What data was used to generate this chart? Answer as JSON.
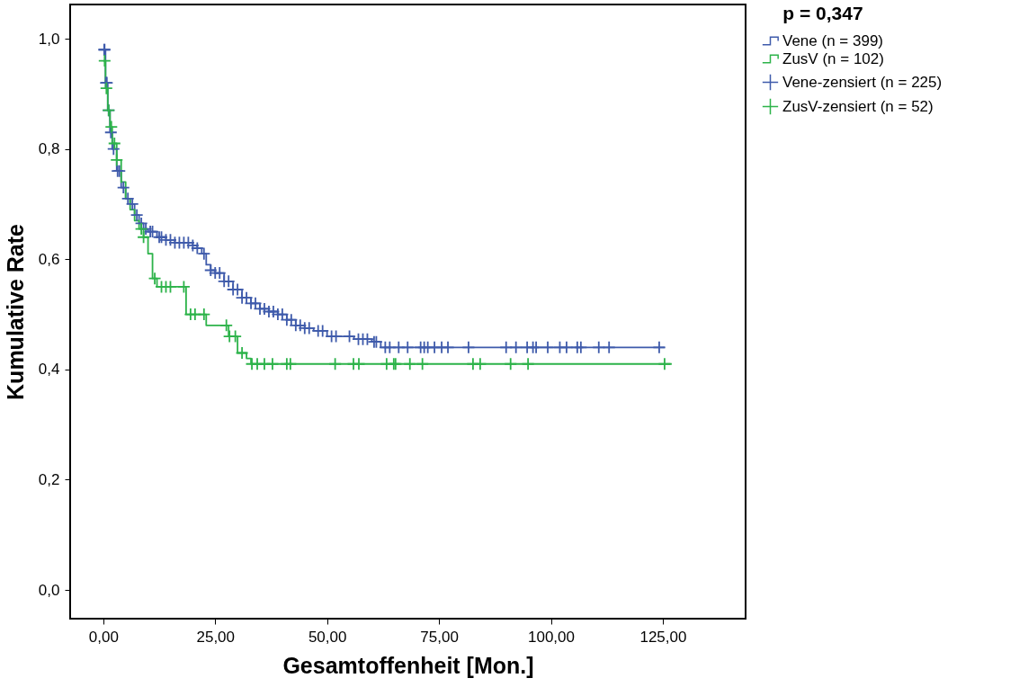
{
  "chart_data": {
    "type": "step",
    "xlabel": "Gesamtoffenheit [Mon.]",
    "ylabel": "Kumulative Rate",
    "legend_title": "p = 0,347",
    "legend": "right",
    "grid": false,
    "line_style": "solid",
    "xlim": [
      -7.4,
      143.5
    ],
    "ylim": [
      -0.052,
      1.062
    ],
    "xticks": [
      {
        "value": 0,
        "label": "0,00"
      },
      {
        "value": 25,
        "label": "25,00"
      },
      {
        "value": 50,
        "label": "50,00"
      },
      {
        "value": 75,
        "label": "75,00"
      },
      {
        "value": 100,
        "label": "100,00"
      },
      {
        "value": 125,
        "label": "125,00"
      }
    ],
    "yticks": [
      {
        "value": 0,
        "label": "0,0"
      },
      {
        "value": 0.2,
        "label": "0,2"
      },
      {
        "value": 0.4,
        "label": "0,4"
      },
      {
        "value": 0.6,
        "label": "0,6"
      },
      {
        "value": 0.8,
        "label": "0,8"
      },
      {
        "value": 1.0,
        "label": "1,0"
      }
    ],
    "series": [
      {
        "name": "Vene (n = 399)",
        "color": "#3f5bab",
        "marker": "none",
        "x": [
          0,
          0.5,
          1,
          1.5,
          2,
          3,
          4,
          5,
          6,
          7,
          8,
          9,
          10,
          12,
          14,
          16,
          20,
          21,
          22,
          23,
          24,
          25,
          27,
          29,
          31,
          33,
          35,
          37,
          39,
          41,
          43,
          45,
          47,
          50,
          56,
          60,
          62,
          125.5
        ],
        "values": [
          0.98,
          0.92,
          0.87,
          0.83,
          0.8,
          0.76,
          0.73,
          0.71,
          0.7,
          0.68,
          0.665,
          0.655,
          0.65,
          0.64,
          0.635,
          0.63,
          0.625,
          0.62,
          0.61,
          0.59,
          0.58,
          0.575,
          0.56,
          0.545,
          0.53,
          0.52,
          0.51,
          0.505,
          0.5,
          0.49,
          0.48,
          0.475,
          0.47,
          0.46,
          0.455,
          0.45,
          0.44,
          0.44
        ]
      },
      {
        "name": "ZusV (n = 102)",
        "color": "#2db34a",
        "marker": "none",
        "x": [
          0,
          0.5,
          1,
          1.5,
          2,
          3,
          4,
          5,
          6,
          7,
          8,
          9,
          10,
          11,
          12,
          18.5,
          23,
          28,
          30,
          32,
          33,
          127
        ],
        "values": [
          0.96,
          0.91,
          0.87,
          0.84,
          0.81,
          0.78,
          0.74,
          0.71,
          0.69,
          0.67,
          0.655,
          0.64,
          0.61,
          0.565,
          0.55,
          0.5,
          0.48,
          0.46,
          0.43,
          0.42,
          0.41,
          0.41
        ]
      },
      {
        "name": "Vene-zensiert (n = 225)",
        "type": "scatter",
        "marker": "cross",
        "color": "#3f5bab",
        "x": [
          0.2,
          0.3,
          0.6,
          0.8,
          1.2,
          1.7,
          2.3,
          3.2,
          3.6,
          4.5,
          5.5,
          6.5,
          7.5,
          8.5,
          9.5,
          10.5,
          11,
          12.5,
          13,
          14,
          15,
          16,
          17,
          18,
          19,
          20,
          21,
          22.5,
          24,
          25,
          26,
          27,
          28,
          29,
          30,
          31,
          32,
          33,
          34,
          35,
          36,
          37,
          38,
          39,
          40,
          41,
          42,
          43,
          44,
          45,
          46,
          48,
          49,
          51,
          52,
          55,
          57,
          58,
          59,
          60.5,
          61,
          63,
          64,
          66,
          68,
          70.9,
          71.7,
          72.5,
          74,
          75.6,
          77,
          81.6,
          90,
          92.2,
          94.7,
          96,
          96.7,
          99.3,
          102,
          103.5,
          105.9,
          106.7,
          110.7,
          113,
          124.2
        ],
        "values": [
          0.98,
          0.98,
          0.92,
          0.92,
          0.87,
          0.83,
          0.8,
          0.76,
          0.76,
          0.73,
          0.71,
          0.7,
          0.68,
          0.665,
          0.655,
          0.65,
          0.65,
          0.64,
          0.64,
          0.635,
          0.635,
          0.63,
          0.63,
          0.63,
          0.63,
          0.625,
          0.62,
          0.61,
          0.58,
          0.575,
          0.575,
          0.56,
          0.56,
          0.545,
          0.545,
          0.53,
          0.53,
          0.52,
          0.52,
          0.51,
          0.51,
          0.505,
          0.505,
          0.5,
          0.5,
          0.49,
          0.49,
          0.48,
          0.48,
          0.475,
          0.475,
          0.47,
          0.47,
          0.46,
          0.46,
          0.46,
          0.455,
          0.455,
          0.455,
          0.45,
          0.45,
          0.44,
          0.44,
          0.44,
          0.44,
          0.44,
          0.44,
          0.44,
          0.44,
          0.44,
          0.44,
          0.44,
          0.44,
          0.44,
          0.44,
          0.44,
          0.44,
          0.44,
          0.44,
          0.44,
          0.44,
          0.44,
          0.44,
          0.44,
          0.44
        ]
      },
      {
        "name": "ZusV-zensiert (n = 52)",
        "type": "scatter",
        "marker": "cross",
        "color": "#2db34a",
        "x": [
          0.3,
          0.7,
          1.2,
          1.8,
          2.5,
          3,
          8.5,
          9,
          11.5,
          13,
          14,
          15,
          18,
          19.5,
          20.5,
          22.5,
          27.5,
          28.2,
          29.5,
          31,
          33.2,
          34.4,
          36,
          37.8,
          41,
          41.8,
          51.8,
          55.9,
          57.1,
          63.3,
          64.9,
          65.3,
          68.5,
          71.3,
          82.6,
          84.2,
          91,
          94.9,
          125.4
        ],
        "values": [
          0.96,
          0.91,
          0.87,
          0.84,
          0.81,
          0.78,
          0.655,
          0.64,
          0.565,
          0.55,
          0.55,
          0.55,
          0.55,
          0.5,
          0.5,
          0.5,
          0.48,
          0.46,
          0.46,
          0.43,
          0.41,
          0.41,
          0.41,
          0.41,
          0.41,
          0.41,
          0.41,
          0.41,
          0.41,
          0.41,
          0.41,
          0.41,
          0.41,
          0.41,
          0.41,
          0.41,
          0.41,
          0.41,
          0.41
        ]
      }
    ]
  }
}
